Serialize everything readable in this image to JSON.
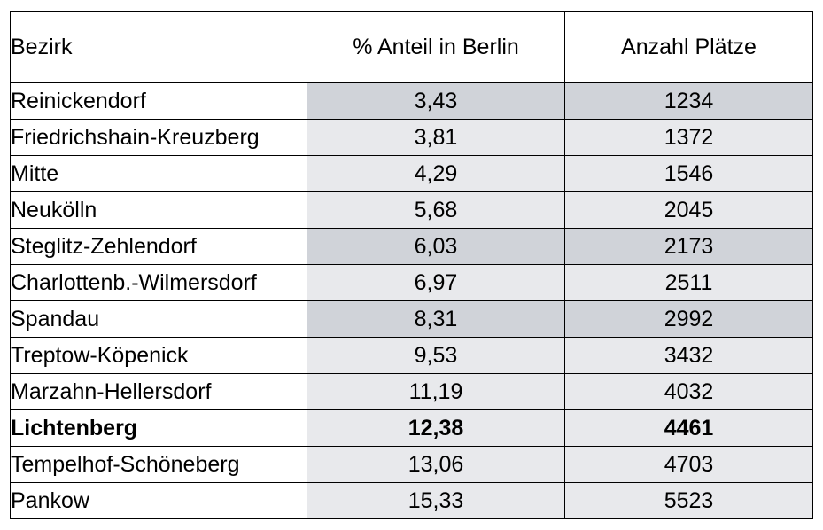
{
  "table": {
    "headers": [
      "Bezirk",
      "% Anteil in Berlin",
      "Anzahl Plätze"
    ],
    "rows": [
      {
        "bezirk": "Reinickendorf",
        "anteil": "3,43",
        "plaetze": "1234"
      },
      {
        "bezirk": "Friedrichshain-Kreuzberg",
        "anteil": "3,81",
        "plaetze": "1372"
      },
      {
        "bezirk": "Mitte",
        "anteil": "4,29",
        "plaetze": "1546"
      },
      {
        "bezirk": "Neukölln",
        "anteil": "5,68",
        "plaetze": "2045"
      },
      {
        "bezirk": "Steglitz-Zehlendorf",
        "anteil": "6,03",
        "plaetze": "2173"
      },
      {
        "bezirk": "Charlottenb.-Wilmersdorf",
        "anteil": "6,97",
        "plaetze": "2511"
      },
      {
        "bezirk": "Spandau",
        "anteil": "8,31",
        "plaetze": "2992"
      },
      {
        "bezirk": "Treptow-Köpenick",
        "anteil": "9,53",
        "plaetze": "3432"
      },
      {
        "bezirk": "Marzahn-Hellersdorf",
        "anteil": "11,19",
        "plaetze": "4032"
      },
      {
        "bezirk": "Lichtenberg",
        "anteil": "12,38",
        "plaetze": "4461"
      },
      {
        "bezirk": "Tempelhof-Schöneberg",
        "anteil": "13,06",
        "plaetze": "4703"
      },
      {
        "bezirk": "Pankow",
        "anteil": "15,33",
        "plaetze": "5523"
      }
    ],
    "highlighted_row": "Lichtenberg"
  },
  "colors": {
    "cell_shade_dark": "#d0d3d9",
    "cell_shade_light": "#e8e9ec",
    "border": "#000000"
  }
}
